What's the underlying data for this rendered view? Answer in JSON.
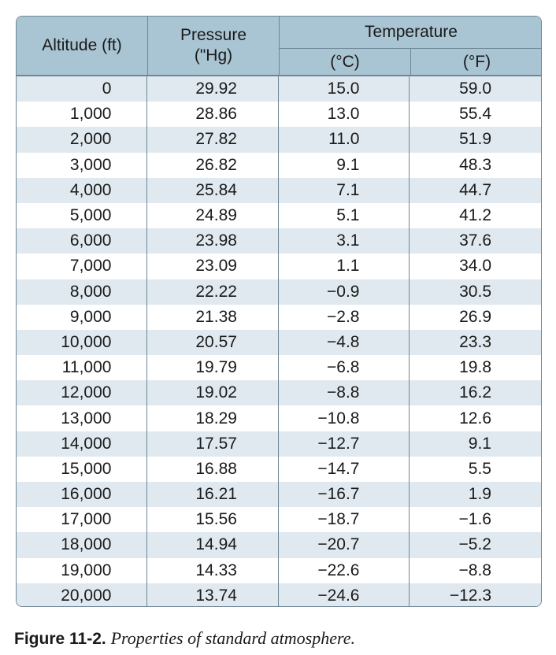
{
  "table": {
    "headers": {
      "altitude": "Altitude (ft)",
      "pressure_line1": "Pressure",
      "pressure_line2": "(\"Hg)",
      "temperature": "Temperature",
      "celsius": "(°C)",
      "fahrenheit": "(°F)"
    },
    "rows": [
      [
        "0",
        "29.92",
        "15.0",
        "59.0"
      ],
      [
        "1,000",
        "28.86",
        "13.0",
        "55.4"
      ],
      [
        "2,000",
        "27.82",
        "11.0",
        "51.9"
      ],
      [
        "3,000",
        "26.82",
        "9.1",
        "48.3"
      ],
      [
        "4,000",
        "25.84",
        "7.1",
        "44.7"
      ],
      [
        "5,000",
        "24.89",
        "5.1",
        "41.2"
      ],
      [
        "6,000",
        "23.98",
        "3.1",
        "37.6"
      ],
      [
        "7,000",
        "23.09",
        "1.1",
        "34.0"
      ],
      [
        "8,000",
        "22.22",
        "−0.9",
        "30.5"
      ],
      [
        "9,000",
        "21.38",
        "−2.8",
        "26.9"
      ],
      [
        "10,000",
        "20.57",
        "−4.8",
        "23.3"
      ],
      [
        "11,000",
        "19.79",
        "−6.8",
        "19.8"
      ],
      [
        "12,000",
        "19.02",
        "−8.8",
        "16.2"
      ],
      [
        "13,000",
        "18.29",
        "−10.8",
        "12.6"
      ],
      [
        "14,000",
        "17.57",
        "−12.7",
        "9.1"
      ],
      [
        "15,000",
        "16.88",
        "−14.7",
        "5.5"
      ],
      [
        "16,000",
        "16.21",
        "−16.7",
        "1.9"
      ],
      [
        "17,000",
        "15.56",
        "−18.7",
        "−1.6"
      ],
      [
        "18,000",
        "14.94",
        "−20.7",
        "−5.2"
      ],
      [
        "19,000",
        "14.33",
        "−22.6",
        "−8.8"
      ],
      [
        "20,000",
        "13.74",
        "−24.6",
        "−12.3"
      ]
    ]
  },
  "caption": {
    "label": "Figure 11-2.",
    "text": "Properties of standard atmosphere."
  },
  "colors": {
    "header_bg": "#a9c4d2",
    "stripe_bg": "#dfe9ef",
    "border": "#6f8796"
  }
}
